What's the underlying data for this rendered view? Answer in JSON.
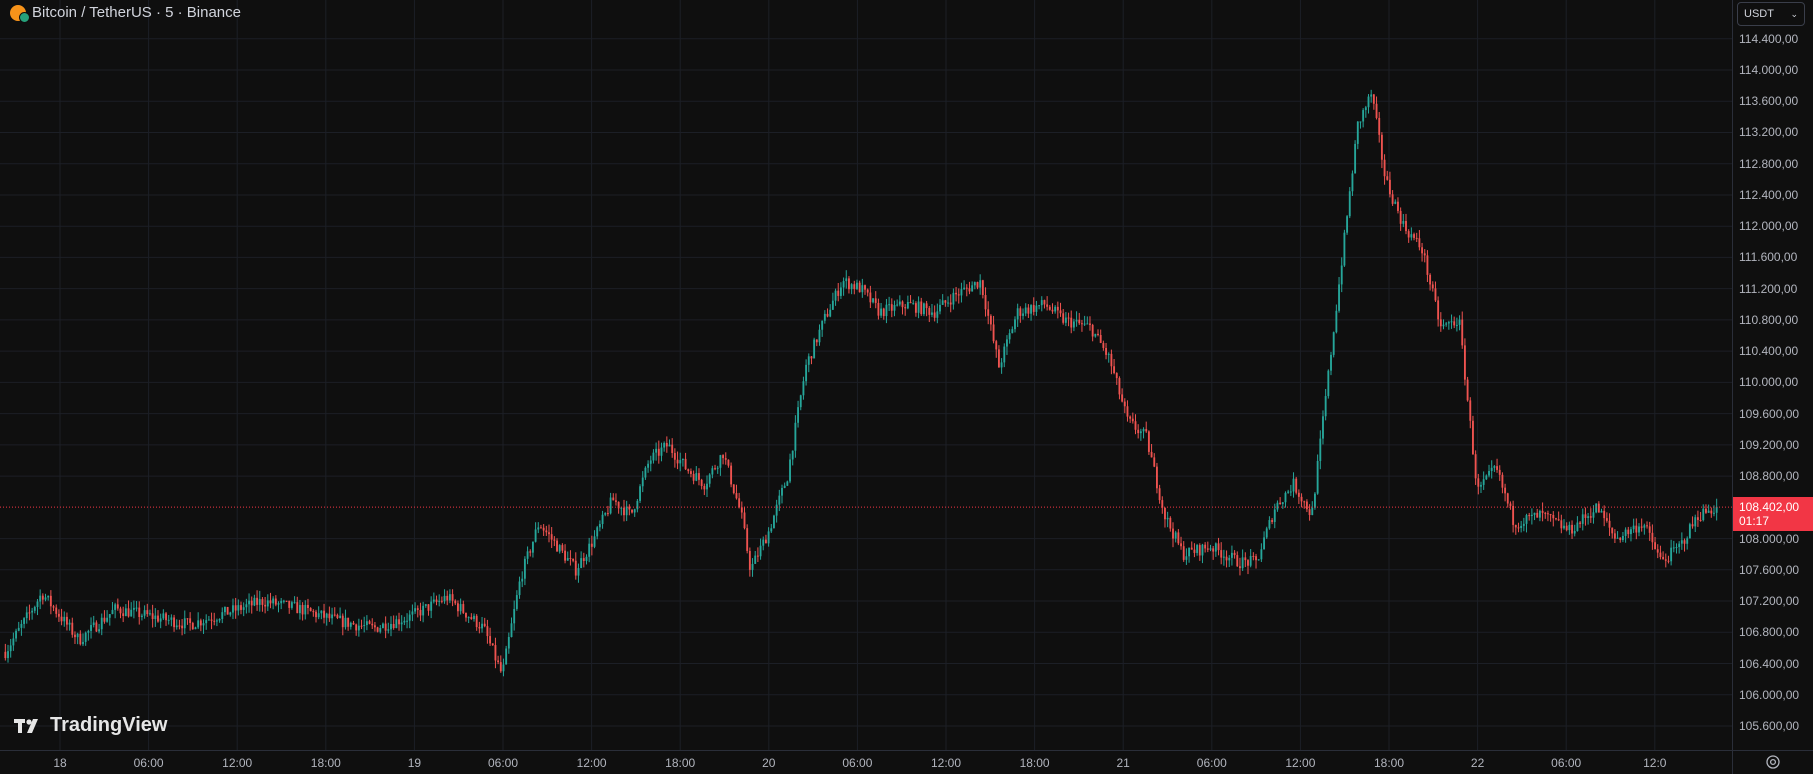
{
  "header": {
    "symbol_title": "Bitcoin / TetherUS · 5 · Binance",
    "coin_icon": "bitcoin-icon"
  },
  "currency_select": {
    "value": "USDT",
    "icon": "chevron-down-icon"
  },
  "price_axis": {
    "labels": [
      "114.400,00",
      "114.000,00",
      "113.600,00",
      "113.200,00",
      "112.800,00",
      "112.400,00",
      "112.000,00",
      "111.600,00",
      "111.200,00",
      "110.800,00",
      "110.400,00",
      "110.000,00",
      "109.600,00",
      "109.200,00",
      "108.800,00",
      "108.000,00",
      "107.600,00",
      "107.200,00",
      "106.800,00",
      "106.400,00",
      "106.000,00",
      "105.600,00"
    ]
  },
  "time_axis": {
    "labels": [
      "18",
      "06:00",
      "12:00",
      "18:00",
      "19",
      "06:00",
      "12:00",
      "18:00",
      "20",
      "06:00",
      "12:00",
      "18:00",
      "21",
      "06:00",
      "12:00",
      "18:00",
      "22",
      "06:00",
      "12:0"
    ]
  },
  "current_price": {
    "value": "108.402,00",
    "countdown": "01:17",
    "color": "#f23645"
  },
  "logo": {
    "text": "TradingView"
  },
  "colors": {
    "up": "#26a69a",
    "down": "#ef5350",
    "background": "#0f0f0f",
    "grid": "#1c1f26"
  },
  "chart_data": {
    "type": "candlestick-line",
    "interval": "5",
    "price_range": [
      105500,
      114600
    ],
    "current_price": 108402,
    "series": [
      {
        "x": 0,
        "y": 106550
      },
      {
        "x": 8,
        "y": 107300
      },
      {
        "x": 16,
        "y": 106700
      },
      {
        "x": 24,
        "y": 107100
      },
      {
        "x": 32,
        "y": 107000
      },
      {
        "x": 40,
        "y": 106900
      },
      {
        "x": 48,
        "y": 107050
      },
      {
        "x": 56,
        "y": 107200
      },
      {
        "x": 64,
        "y": 107100
      },
      {
        "x": 72,
        "y": 106950
      },
      {
        "x": 80,
        "y": 106850
      },
      {
        "x": 88,
        "y": 107000
      },
      {
        "x": 96,
        "y": 107250
      },
      {
        "x": 104,
        "y": 106850
      },
      {
        "x": 108,
        "y": 106250
      },
      {
        "x": 112,
        "y": 107500
      },
      {
        "x": 116,
        "y": 108200
      },
      {
        "x": 124,
        "y": 107600
      },
      {
        "x": 128,
        "y": 108000
      },
      {
        "x": 132,
        "y": 108500
      },
      {
        "x": 136,
        "y": 108300
      },
      {
        "x": 140,
        "y": 109000
      },
      {
        "x": 144,
        "y": 109200
      },
      {
        "x": 148,
        "y": 108900
      },
      {
        "x": 152,
        "y": 108700
      },
      {
        "x": 156,
        "y": 109100
      },
      {
        "x": 160,
        "y": 108300
      },
      {
        "x": 162,
        "y": 107600
      },
      {
        "x": 166,
        "y": 108100
      },
      {
        "x": 170,
        "y": 108800
      },
      {
        "x": 174,
        "y": 110200
      },
      {
        "x": 178,
        "y": 110800
      },
      {
        "x": 182,
        "y": 111300
      },
      {
        "x": 186,
        "y": 111200
      },
      {
        "x": 190,
        "y": 110900
      },
      {
        "x": 196,
        "y": 111000
      },
      {
        "x": 202,
        "y": 110900
      },
      {
        "x": 206,
        "y": 111100
      },
      {
        "x": 212,
        "y": 111300
      },
      {
        "x": 216,
        "y": 110200
      },
      {
        "x": 220,
        "y": 110900
      },
      {
        "x": 226,
        "y": 111000
      },
      {
        "x": 230,
        "y": 110800
      },
      {
        "x": 236,
        "y": 110700
      },
      {
        "x": 240,
        "y": 110300
      },
      {
        "x": 244,
        "y": 109500
      },
      {
        "x": 248,
        "y": 109300
      },
      {
        "x": 252,
        "y": 108300
      },
      {
        "x": 256,
        "y": 107800
      },
      {
        "x": 262,
        "y": 107900
      },
      {
        "x": 268,
        "y": 107700
      },
      {
        "x": 272,
        "y": 107700
      },
      {
        "x": 276,
        "y": 108400
      },
      {
        "x": 280,
        "y": 108700
      },
      {
        "x": 284,
        "y": 108300
      },
      {
        "x": 286,
        "y": 109300
      },
      {
        "x": 290,
        "y": 111300
      },
      {
        "x": 294,
        "y": 113300
      },
      {
        "x": 297,
        "y": 113700
      },
      {
        "x": 300,
        "y": 112600
      },
      {
        "x": 304,
        "y": 112000
      },
      {
        "x": 308,
        "y": 111700
      },
      {
        "x": 312,
        "y": 110700
      },
      {
        "x": 316,
        "y": 110800
      },
      {
        "x": 320,
        "y": 108600
      },
      {
        "x": 324,
        "y": 108900
      },
      {
        "x": 328,
        "y": 108200
      },
      {
        "x": 334,
        "y": 108300
      },
      {
        "x": 340,
        "y": 108100
      },
      {
        "x": 346,
        "y": 108400
      },
      {
        "x": 350,
        "y": 108000
      },
      {
        "x": 356,
        "y": 108200
      },
      {
        "x": 360,
        "y": 107700
      },
      {
        "x": 364,
        "y": 107900
      },
      {
        "x": 368,
        "y": 108300
      },
      {
        "x": 372,
        "y": 108402
      }
    ]
  }
}
